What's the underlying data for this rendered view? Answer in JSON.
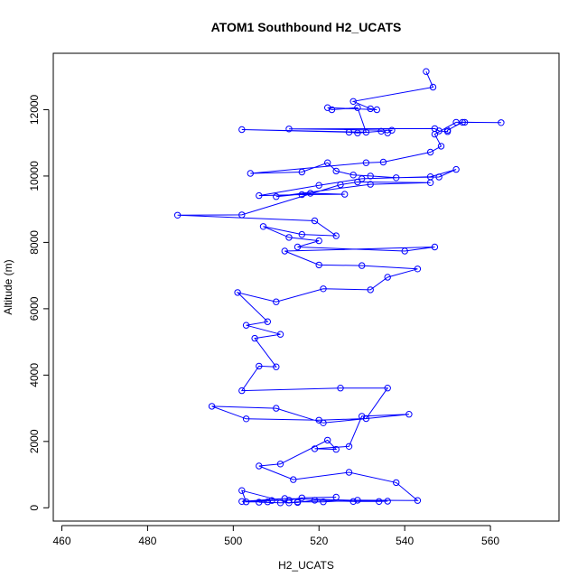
{
  "chart_data": {
    "type": "line",
    "title": "ATOM1 Southbound H2_UCATS",
    "xlabel": "H2_UCATS",
    "ylabel": "Altitude (m)",
    "xlim": [
      458,
      576
    ],
    "ylim": [
      -400,
      13700
    ],
    "x_ticks": [
      460,
      480,
      500,
      520,
      540,
      560
    ],
    "y_ticks": [
      0,
      2000,
      4000,
      6000,
      8000,
      10000,
      12000
    ],
    "grid": false,
    "line_color": "#0000ff",
    "marker": "open-circle",
    "series": [
      {
        "points": [
          [
            545,
            13150
          ],
          [
            546.6,
            12680
          ],
          [
            528,
            12250
          ],
          [
            532,
            12030
          ],
          [
            533.5,
            12000
          ],
          [
            522,
            12060
          ],
          [
            523,
            12000
          ],
          [
            529,
            12060
          ],
          [
            531,
            11320
          ],
          [
            502,
            11400
          ],
          [
            527,
            11320
          ],
          [
            529,
            11300
          ],
          [
            534.5,
            11350
          ],
          [
            536,
            11300
          ],
          [
            537,
            11380
          ],
          [
            513,
            11420
          ],
          [
            547,
            11430
          ],
          [
            548,
            11360
          ],
          [
            550,
            11340
          ],
          [
            550,
            11380
          ],
          [
            553.5,
            11620
          ],
          [
            554,
            11620
          ],
          [
            562.5,
            11610
          ],
          [
            552,
            11620
          ],
          [
            547,
            11260
          ],
          [
            548.5,
            10900
          ],
          [
            546,
            10720
          ],
          [
            535,
            10420
          ],
          [
            531,
            10400
          ],
          [
            504,
            10080
          ],
          [
            516,
            10120
          ],
          [
            522,
            10400
          ],
          [
            524,
            10150
          ],
          [
            528,
            10030
          ],
          [
            532,
            10000
          ],
          [
            538,
            9950
          ],
          [
            548,
            9970
          ],
          [
            552,
            10200
          ],
          [
            546,
            9980
          ],
          [
            530,
            9920
          ],
          [
            520,
            9720
          ],
          [
            506,
            9410
          ],
          [
            516,
            9440
          ],
          [
            526,
            9450
          ],
          [
            518,
            9480
          ],
          [
            510,
            9380
          ],
          [
            532,
            9750
          ],
          [
            546,
            9800
          ],
          [
            529,
            9820
          ],
          [
            525,
            9740
          ],
          [
            502,
            8830
          ],
          [
            487,
            8820
          ],
          [
            519,
            8650
          ],
          [
            524,
            8200
          ],
          [
            516,
            8240
          ],
          [
            507,
            8480
          ],
          [
            513,
            8150
          ],
          [
            520,
            8050
          ],
          [
            515,
            7860
          ],
          [
            540,
            7740
          ],
          [
            547,
            7860
          ],
          [
            512,
            7740
          ],
          [
            520,
            7320
          ],
          [
            530,
            7300
          ],
          [
            543,
            7200
          ],
          [
            536,
            6950
          ],
          [
            532,
            6570
          ],
          [
            521,
            6600
          ],
          [
            510,
            6210
          ],
          [
            501,
            6490
          ],
          [
            508,
            5610
          ],
          [
            503,
            5500
          ],
          [
            511,
            5230
          ],
          [
            505,
            5110
          ],
          [
            510,
            4250
          ],
          [
            506,
            4270
          ],
          [
            502,
            3530
          ],
          [
            525,
            3610
          ],
          [
            536,
            3610
          ],
          [
            531,
            2690
          ],
          [
            520,
            2640
          ],
          [
            503,
            2680
          ],
          [
            495,
            3060
          ],
          [
            510,
            3000
          ],
          [
            521,
            2560
          ],
          [
            541,
            2820
          ],
          [
            530,
            2760
          ],
          [
            527,
            1850
          ],
          [
            519,
            1780
          ],
          [
            524,
            1760
          ],
          [
            522,
            2040
          ],
          [
            511,
            1320
          ],
          [
            506,
            1260
          ],
          [
            514,
            850
          ],
          [
            527,
            1070
          ],
          [
            538,
            760
          ],
          [
            543,
            220
          ],
          [
            529,
            230
          ],
          [
            521,
            180
          ],
          [
            515,
            180
          ],
          [
            513,
            150
          ],
          [
            502,
            520
          ],
          [
            503,
            180
          ],
          [
            508,
            180
          ],
          [
            506,
            170
          ],
          [
            511,
            150
          ],
          [
            515,
            160
          ],
          [
            519,
            230
          ],
          [
            528,
            190
          ],
          [
            534,
            190
          ],
          [
            536,
            200
          ],
          [
            512,
            280
          ],
          [
            502,
            190
          ],
          [
            509,
            220
          ],
          [
            513,
            230
          ],
          [
            516,
            300
          ],
          [
            524,
            320
          ]
        ]
      }
    ]
  }
}
